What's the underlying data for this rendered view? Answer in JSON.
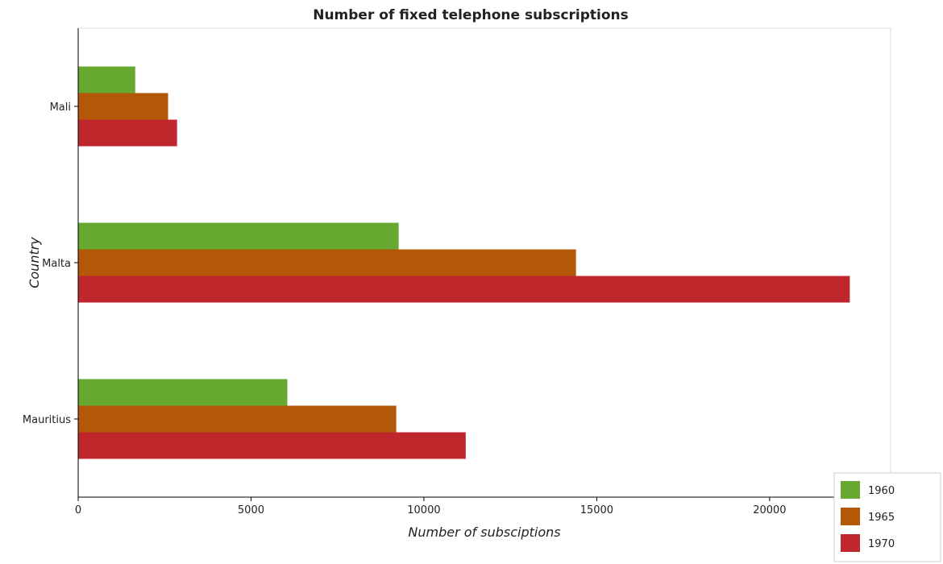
{
  "chart_data": {
    "type": "bar",
    "orientation": "horizontal",
    "title": "Number of fixed telephone subscriptions",
    "xlabel": "Number of subsciptions",
    "ylabel": "Country",
    "categories": [
      "Mali",
      "Malta",
      "Mauritius"
    ],
    "series": [
      {
        "name": "1960",
        "color": "#66a830",
        "values": [
          1650,
          9270,
          6050
        ]
      },
      {
        "name": "1965",
        "color": "#b35806",
        "values": [
          2600,
          14400,
          9200
        ]
      },
      {
        "name": "1970",
        "color": "#c0272d",
        "values": [
          2860,
          22320,
          11210
        ]
      }
    ],
    "xlim": [
      0,
      23500
    ],
    "xticks": [
      0,
      5000,
      10000,
      15000,
      20000
    ],
    "xtick_labels": [
      "0",
      "5000",
      "10000",
      "15000",
      "20000"
    ],
    "grid": false,
    "legend_position": "bottom-right"
  }
}
